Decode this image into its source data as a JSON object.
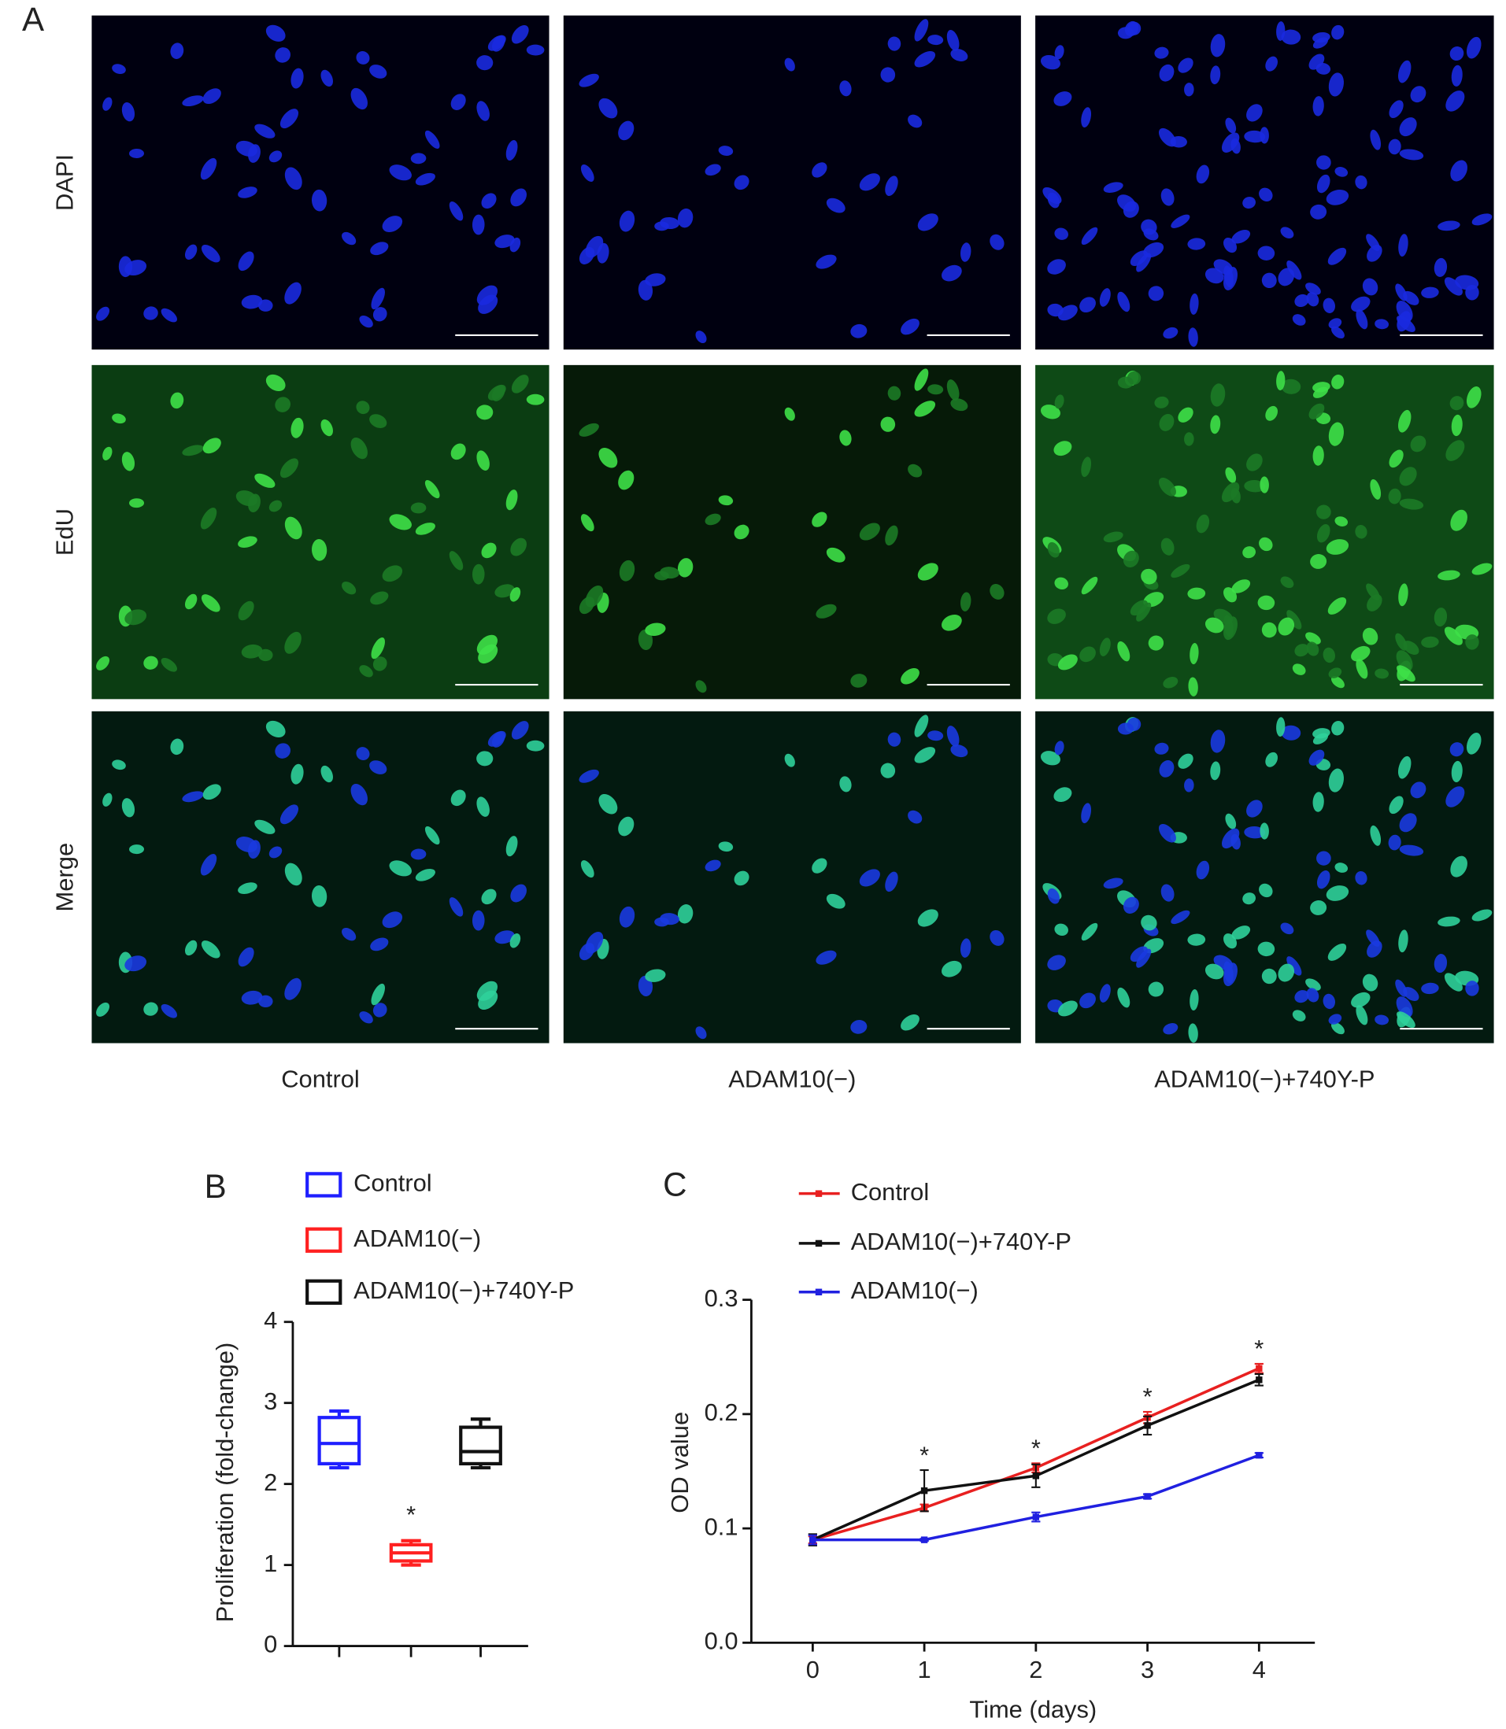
{
  "panel_a": {
    "label": "A",
    "rows": [
      "DAPI",
      "EdU",
      "Merge"
    ],
    "columns": [
      "Control",
      "ADAM10(−)",
      "ADAM10(−)+740Y-P"
    ]
  },
  "chart_data": [
    {
      "type": "box",
      "panel_label": "B",
      "ylabel": "Proliferation (fold-change)",
      "ylim": [
        0,
        4
      ],
      "yticks": [
        0,
        1,
        2,
        3,
        4
      ],
      "series": [
        {
          "name": "Control",
          "color": "#1f1fff",
          "min": 2.2,
          "q1": 2.25,
          "median": 2.5,
          "q3": 2.82,
          "max": 2.9
        },
        {
          "name": "ADAM10(−)",
          "color": "#ff2020",
          "min": 1.0,
          "q1": 1.05,
          "median": 1.15,
          "q3": 1.25,
          "max": 1.3,
          "annotation": "*"
        },
        {
          "name": "ADAM10(−)+740Y-P",
          "color": "#111111",
          "min": 2.2,
          "q1": 2.25,
          "median": 2.4,
          "q3": 2.7,
          "max": 2.8
        }
      ]
    },
    {
      "type": "line",
      "panel_label": "C",
      "xlabel": "Time (days)",
      "ylabel": "OD value",
      "x": [
        0,
        1,
        2,
        3,
        4
      ],
      "xlim": [
        -0.55,
        4.5
      ],
      "xticks": [
        0,
        1,
        2,
        3,
        4
      ],
      "ylim": [
        0,
        0.3
      ],
      "yticks": [
        {
          "value": 0,
          "label": "0.0"
        },
        0.1,
        0.2,
        0.3
      ],
      "series": [
        {
          "name": "Control",
          "color": "#e82020",
          "values": [
            0.09,
            0.118,
            0.153,
            0.197,
            0.24
          ],
          "errors": [
            0.003,
            0.003,
            0.004,
            0.005,
            0.004
          ]
        },
        {
          "name": "ADAM10(−)+740Y-P",
          "color": "#111111",
          "values": [
            0.09,
            0.133,
            0.146,
            0.19,
            0.23
          ],
          "errors": [
            0.005,
            0.018,
            0.01,
            0.008,
            0.005
          ]
        },
        {
          "name": "ADAM10(−)",
          "color": "#2020e0",
          "values": [
            0.09,
            0.09,
            0.11,
            0.128,
            0.164
          ],
          "errors": [
            0.004,
            0.001,
            0.004,
            0.002,
            0.002
          ]
        }
      ],
      "annotations": [
        {
          "x": 1,
          "text": "*"
        },
        {
          "x": 2,
          "text": "*"
        },
        {
          "x": 3,
          "text": "*"
        },
        {
          "x": 4,
          "text": "*"
        }
      ]
    }
  ]
}
